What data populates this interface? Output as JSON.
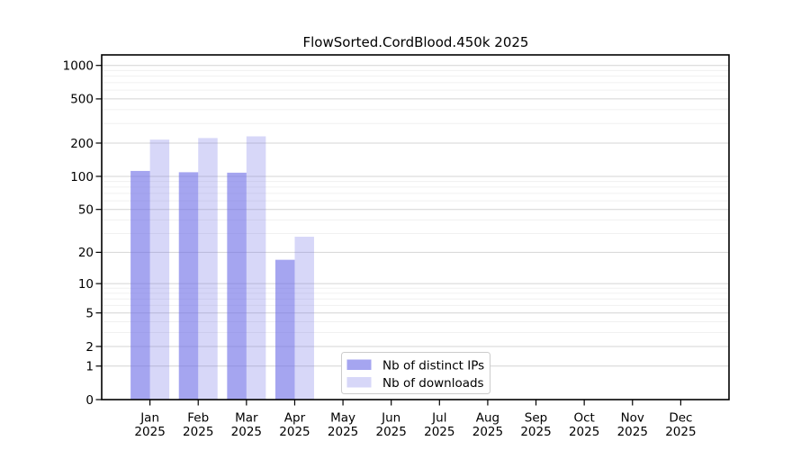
{
  "chart_data": {
    "type": "bar",
    "title": "FlowSorted.CordBlood.450k 2025",
    "x_categories": [
      {
        "month": "Jan",
        "year": "2025"
      },
      {
        "month": "Feb",
        "year": "2025"
      },
      {
        "month": "Mar",
        "year": "2025"
      },
      {
        "month": "Apr",
        "year": "2025"
      },
      {
        "month": "May",
        "year": "2025"
      },
      {
        "month": "Jun",
        "year": "2025"
      },
      {
        "month": "Jul",
        "year": "2025"
      },
      {
        "month": "Aug",
        "year": "2025"
      },
      {
        "month": "Sep",
        "year": "2025"
      },
      {
        "month": "Oct",
        "year": "2025"
      },
      {
        "month": "Nov",
        "year": "2025"
      },
      {
        "month": "Dec",
        "year": "2025"
      }
    ],
    "series": [
      {
        "name": "Nb of distinct IPs",
        "values": [
          112,
          109,
          108,
          17,
          0,
          0,
          0,
          0,
          0,
          0,
          0,
          0
        ]
      },
      {
        "name": "Nb of downloads",
        "values": [
          215,
          222,
          230,
          28,
          0,
          0,
          0,
          0,
          0,
          0,
          0,
          0
        ]
      }
    ],
    "y_scale": "log10(value+1)",
    "y_major_ticks": [
      0,
      1,
      2,
      5,
      10,
      20,
      50,
      100,
      200,
      500,
      1000
    ],
    "y_minor_gridlines": [
      3,
      4,
      6,
      7,
      8,
      9,
      30,
      40,
      60,
      70,
      80,
      90,
      300,
      400,
      600,
      700,
      800,
      900
    ],
    "ylim": [
      0,
      1250
    ],
    "grid": true,
    "legend_position": "inside-bottom-center",
    "colors": {
      "ips_fill": "rgba(110,110,230,0.62)",
      "downloads_fill": "rgba(110,110,230,0.28)",
      "grid_major": "#d4d4d4",
      "grid_minor": "#f0f0f0",
      "axis": "#000000",
      "legend_border": "#cccccc"
    }
  }
}
